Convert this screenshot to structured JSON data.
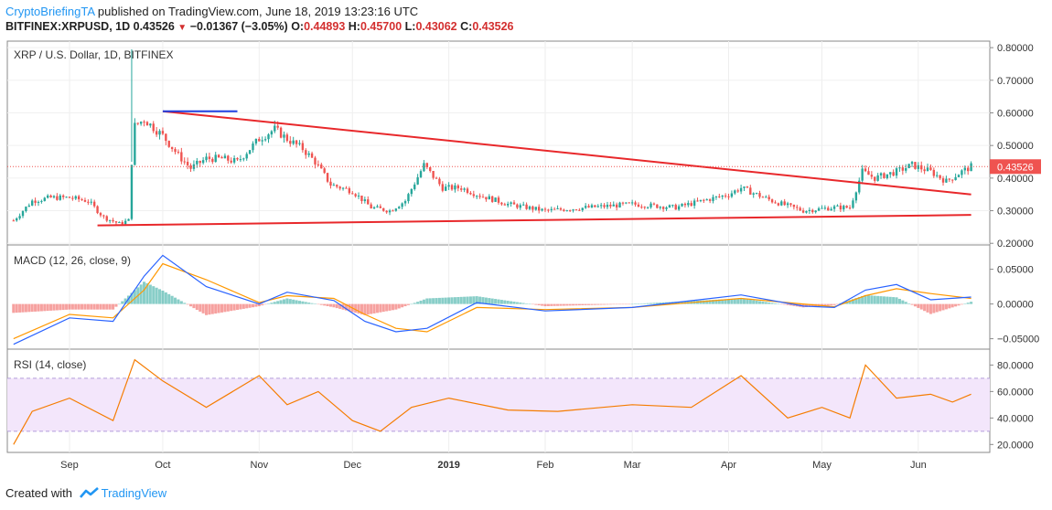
{
  "header": {
    "brand": "CryptoBriefingTA",
    "published": " published on TradingView.com, June 18, 2019 13:23:16 UTC",
    "symbol": "BITFINEX:XRPUSD, 1D",
    "last": "0.43526",
    "change": "−0.01367 (−3.05%)",
    "o_label": "O:",
    "o": "0.44893",
    "h_label": "H:",
    "h": "0.45700",
    "l_label": "L:",
    "l": "0.43062",
    "c_label": "C:",
    "c": "0.43526"
  },
  "footer": {
    "created": "Created with",
    "tv": "TradingView"
  },
  "colors": {
    "up": "#26a69a",
    "down": "#ef5350",
    "trend": "#e8282b",
    "blue": "#1e3fe0",
    "macd": "#2962ff",
    "signal": "#ff9800",
    "rsi": "#f57c00",
    "rsiband": "#f3e6fb",
    "price_tag": "#ef5350"
  },
  "chart_data": [
    {
      "type": "candlestick",
      "title": "XRP / U.S. Dollar, 1D, BITFINEX",
      "x_labels": [
        "Sep",
        "Oct",
        "Nov",
        "Dec",
        "2019",
        "Feb",
        "Mar",
        "Apr",
        "May",
        "Jun"
      ],
      "y_ticks": [
        "0.80000",
        "0.70000",
        "0.60000",
        "0.50000",
        "0.40000",
        "0.30000",
        "0.20000"
      ],
      "ylim": [
        0.195,
        0.82
      ],
      "last_price": "0.43526",
      "series": [
        {
          "name": "close",
          "dates": [
            "2018-08-14",
            "2018-08-20",
            "2018-08-26",
            "2018-09-01",
            "2018-09-07",
            "2018-09-12",
            "2018-09-17",
            "2018-09-20",
            "2018-09-21",
            "2018-09-22",
            "2018-09-25",
            "2018-10-01",
            "2018-10-06",
            "2018-10-10",
            "2018-10-15",
            "2018-10-20",
            "2018-10-25",
            "2018-11-01",
            "2018-11-06",
            "2018-11-10",
            "2018-11-15",
            "2018-11-19",
            "2018-11-24",
            "2018-12-01",
            "2018-12-07",
            "2018-12-13",
            "2018-12-18",
            "2018-12-24",
            "2018-12-30",
            "2019-01-05",
            "2019-01-10",
            "2019-01-20",
            "2019-02-01",
            "2019-02-15",
            "2019-03-01",
            "2019-03-15",
            "2019-04-01",
            "2019-04-05",
            "2019-04-15",
            "2019-04-25",
            "2019-05-05",
            "2019-05-10",
            "2019-05-14",
            "2019-05-18",
            "2019-05-25",
            "2019-05-30",
            "2019-06-05",
            "2019-06-10",
            "2019-06-15",
            "2019-06-18"
          ],
          "values": [
            0.27,
            0.33,
            0.34,
            0.34,
            0.33,
            0.28,
            0.26,
            0.27,
            0.45,
            0.56,
            0.58,
            0.53,
            0.47,
            0.43,
            0.46,
            0.46,
            0.45,
            0.52,
            0.55,
            0.52,
            0.49,
            0.45,
            0.38,
            0.36,
            0.31,
            0.3,
            0.33,
            0.44,
            0.37,
            0.37,
            0.35,
            0.32,
            0.3,
            0.31,
            0.32,
            0.31,
            0.35,
            0.37,
            0.33,
            0.3,
            0.31,
            0.31,
            0.42,
            0.4,
            0.42,
            0.44,
            0.42,
            0.39,
            0.42,
            0.435
          ]
        }
      ],
      "annotations": [
        {
          "type": "trendline",
          "from": [
            "2018-10-01",
            0.605
          ],
          "to": [
            "2019-06-18",
            0.35
          ]
        },
        {
          "type": "trendline",
          "from": [
            "2018-09-10",
            0.255
          ],
          "to": [
            "2019-06-18",
            0.287
          ]
        },
        {
          "type": "horizontal",
          "from": [
            "2018-10-01",
            0.605
          ],
          "to": [
            "2018-10-25",
            0.605
          ]
        }
      ]
    },
    {
      "type": "line",
      "title": "MACD (12, 26, close, 9)",
      "y_ticks": [
        "0.05000",
        "0.00000",
        "−0.05000"
      ],
      "ylim": [
        -0.065,
        0.085
      ],
      "x": [
        "2018-08-14",
        "2018-09-01",
        "2018-09-15",
        "2018-09-25",
        "2018-10-01",
        "2018-10-15",
        "2018-11-01",
        "2018-11-10",
        "2018-11-25",
        "2018-12-05",
        "2018-12-15",
        "2018-12-25",
        "2019-01-10",
        "2019-02-01",
        "2019-03-01",
        "2019-04-05",
        "2019-04-25",
        "2019-05-05",
        "2019-05-15",
        "2019-05-25",
        "2019-06-05",
        "2019-06-18"
      ],
      "series": [
        {
          "name": "MACD",
          "values": [
            -0.058,
            -0.02,
            -0.025,
            0.04,
            0.07,
            0.025,
            0.0,
            0.017,
            0.005,
            -0.025,
            -0.04,
            -0.035,
            0.002,
            -0.01,
            -0.005,
            0.013,
            -0.003,
            -0.005,
            0.02,
            0.028,
            0.006,
            0.01
          ]
        },
        {
          "name": "Signal",
          "values": [
            -0.05,
            -0.015,
            -0.02,
            0.02,
            0.058,
            0.035,
            0.002,
            0.012,
            0.008,
            -0.015,
            -0.035,
            -0.04,
            -0.005,
            -0.008,
            -0.005,
            0.008,
            0.0,
            -0.004,
            0.012,
            0.022,
            0.015,
            0.008
          ]
        }
      ]
    },
    {
      "type": "line",
      "title": "RSI (14, close)",
      "y_ticks": [
        "80.0000",
        "60.0000",
        "40.0000",
        "20.0000"
      ],
      "ylim": [
        14,
        92
      ],
      "band": [
        30,
        70
      ],
      "x": [
        "2018-08-14",
        "2018-08-20",
        "2018-09-01",
        "2018-09-15",
        "2018-09-22",
        "2018-10-01",
        "2018-10-15",
        "2018-11-01",
        "2018-11-10",
        "2018-11-20",
        "2018-12-01",
        "2018-12-10",
        "2018-12-20",
        "2019-01-01",
        "2019-01-20",
        "2019-02-05",
        "2019-03-01",
        "2019-03-20",
        "2019-04-05",
        "2019-04-20",
        "2019-05-01",
        "2019-05-10",
        "2019-05-15",
        "2019-05-25",
        "2019-06-05",
        "2019-06-12",
        "2019-06-18"
      ],
      "series": [
        {
          "name": "RSI",
          "values": [
            20,
            45,
            55,
            38,
            84,
            68,
            48,
            72,
            50,
            60,
            38,
            30,
            48,
            55,
            46,
            45,
            50,
            48,
            72,
            40,
            48,
            40,
            80,
            55,
            58,
            52,
            58
          ]
        }
      ]
    }
  ]
}
